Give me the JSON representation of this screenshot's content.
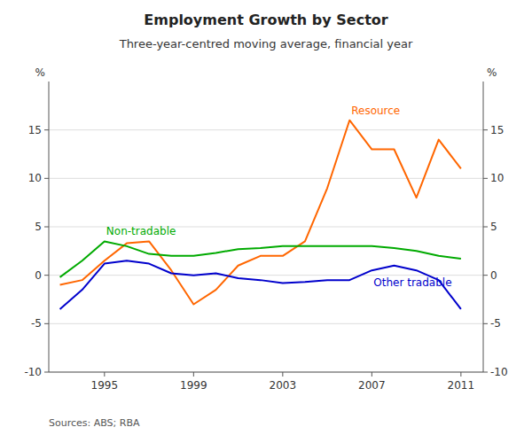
{
  "chart_data": {
    "type": "line",
    "title": "Employment Growth by Sector",
    "subtitle": "Three-year-centred moving average, financial year",
    "source": "Sources: ABS; RBA",
    "ylabel": "%",
    "y2label": "%",
    "x": [
      1993,
      1994,
      1995,
      1996,
      1997,
      1998,
      1999,
      2000,
      2001,
      2002,
      2003,
      2004,
      2005,
      2006,
      2007,
      2008,
      2009,
      2010,
      2011
    ],
    "series": [
      {
        "name": "Resource",
        "color": "#ff6600",
        "values": [
          -1.0,
          -0.5,
          1.5,
          3.3,
          3.5,
          0.5,
          -3.0,
          -1.5,
          1.0,
          2.0,
          2.0,
          3.5,
          9.0,
          16.0,
          13.0,
          13.0,
          8.0,
          14.0,
          11.0
        ]
      },
      {
        "name": "Non-tradable",
        "color": "#00aa00",
        "values": [
          -0.2,
          1.5,
          3.5,
          3.0,
          2.2,
          2.0,
          2.0,
          2.3,
          2.7,
          2.8,
          3.0,
          3.0,
          3.0,
          3.0,
          3.0,
          2.8,
          2.5,
          2.0,
          1.7
        ]
      },
      {
        "name": "Other tradable",
        "color": "#0000cc",
        "values": [
          -3.5,
          -1.5,
          1.2,
          1.5,
          1.2,
          0.2,
          0.0,
          0.2,
          -0.3,
          -0.5,
          -0.8,
          -0.7,
          -0.5,
          -0.5,
          0.5,
          1.0,
          0.5,
          -0.5,
          -3.5
        ]
      }
    ],
    "xlim": [
      1992.5,
      2012
    ],
    "xticks": [
      1995,
      1999,
      2003,
      2007,
      2011
    ],
    "ylim": [
      -10,
      20
    ],
    "yticks": [
      -10,
      -5,
      0,
      5,
      10,
      15
    ],
    "y2lim": [
      -10,
      20
    ],
    "y2ticks": [
      -10,
      -5,
      0,
      5,
      10,
      15
    ],
    "grid": true
  }
}
